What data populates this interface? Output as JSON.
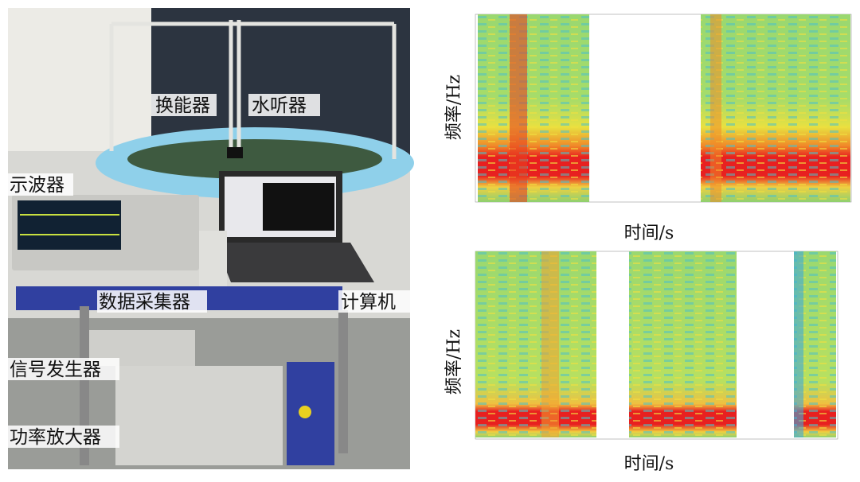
{
  "photo": {
    "labels": [
      "换能器",
      "水听器",
      "示波器",
      "数据采集器",
      "计算机",
      "信号发生器",
      "功率放大器"
    ]
  },
  "spectrograms": [
    {
      "y_label": "频率/Hz",
      "x_label": "时间/s"
    },
    {
      "y_label": "频率/Hz",
      "x_label": "时间/s"
    }
  ]
}
